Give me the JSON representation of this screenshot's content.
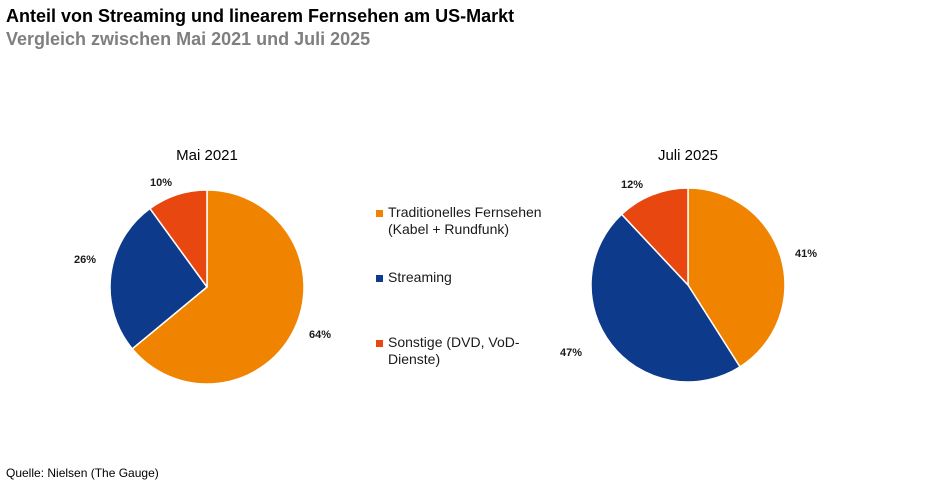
{
  "header": {
    "title": "Anteil von Streaming und linearem Fernsehen am US-Markt",
    "subtitle": "Vergleich zwischen Mai 2021 und Juli 2025"
  },
  "footer": {
    "source": "Quelle: Nielsen (The Gauge)"
  },
  "legend": {
    "items": [
      {
        "label": "Traditionelles Fernsehen (Kabel + Rundfunk)",
        "color": "#f08300"
      },
      {
        "label": "Streaming",
        "color": "#0d3a8a"
      },
      {
        "label": "Sonstige (DVD, VoD-Dienste)",
        "color": "#e8470f"
      }
    ]
  },
  "chart_data": [
    {
      "type": "pie",
      "title": "Mai 2021",
      "categories": [
        "Traditionelles Fernsehen (Kabel + Rundfunk)",
        "Streaming",
        "Sonstige (DVD, VoD-Dienste)"
      ],
      "values": [
        64,
        26,
        10
      ],
      "labels": [
        "64%",
        "26%",
        "10%"
      ],
      "colors": [
        "#f08300",
        "#0d3a8a",
        "#e8470f"
      ]
    },
    {
      "type": "pie",
      "title": "Juli 2025",
      "categories": [
        "Traditionelles Fernsehen (Kabel + Rundfunk)",
        "Streaming",
        "Sonstige (DVD, VoD-Dienste)"
      ],
      "values": [
        41,
        47,
        12
      ],
      "labels": [
        "41%",
        "47%",
        "12%"
      ],
      "colors": [
        "#f08300",
        "#0d3a8a",
        "#e8470f"
      ]
    }
  ]
}
